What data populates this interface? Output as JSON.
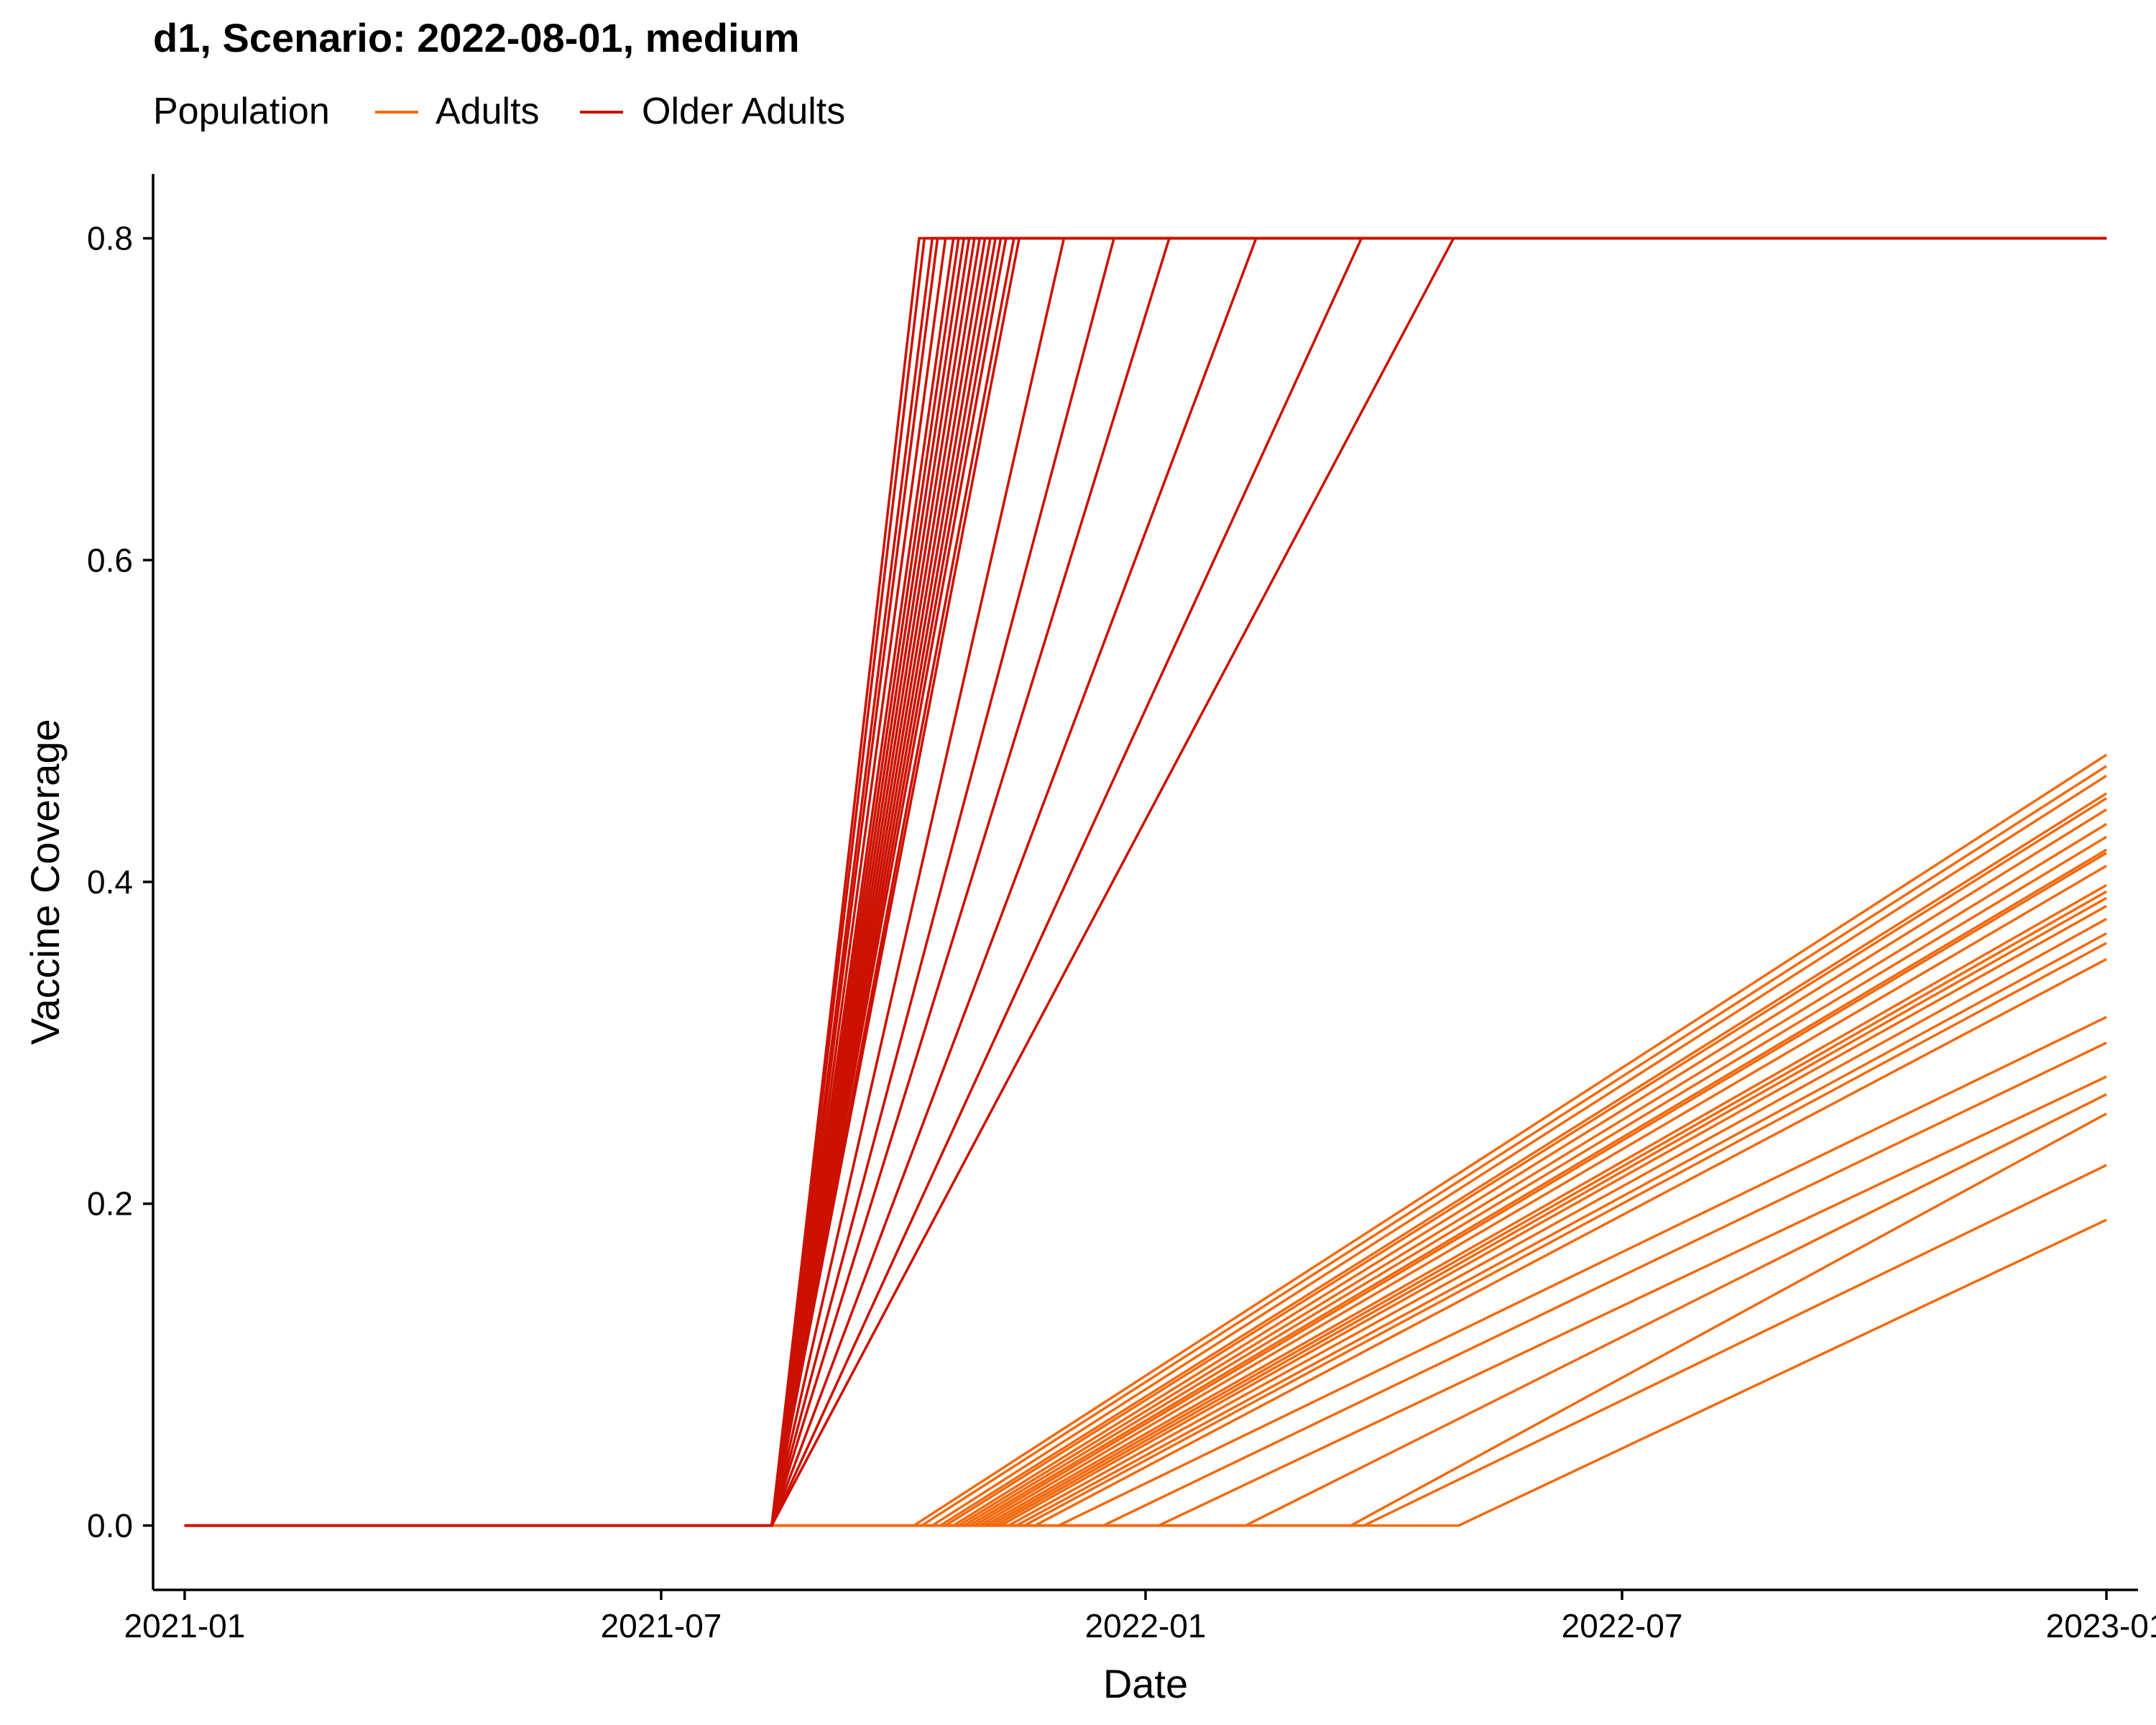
{
  "chart_data": {
    "type": "line",
    "title": "d1, Scenario: 2022-08-01, medium",
    "legend": {
      "title": "Population",
      "placement": "top-left",
      "entries": [
        {
          "name": "Adults",
          "color": "#f26a0f"
        },
        {
          "name": "Older Adults",
          "color": "#cc1100"
        }
      ]
    },
    "xlabel": "Date",
    "ylabel": "Vaccine Coverage",
    "x_type": "date",
    "xlim": [
      "2020-12-20",
      "2023-01-13"
    ],
    "ylim": [
      -0.04,
      0.84
    ],
    "x_ticks": [
      "2021-01",
      "2021-07",
      "2022-01",
      "2022-07",
      "2023-01"
    ],
    "y_ticks": [
      "0.0",
      "0.2",
      "0.4",
      "0.6",
      "0.8"
    ],
    "grid": false,
    "run_start": "2021-01-01",
    "run_end": "2023-01-01",
    "older_rollout_start": "2021-08-12",
    "series": [
      {
        "name": "Older Adults",
        "color": "#cc1100",
        "runs": [
          {
            "reach_cap": "2021-10-07",
            "cap": 0.8
          },
          {
            "reach_cap": "2021-10-09",
            "cap": 0.8
          },
          {
            "reach_cap": "2021-10-12",
            "cap": 0.8
          },
          {
            "reach_cap": "2021-10-14",
            "cap": 0.8
          },
          {
            "reach_cap": "2021-10-17",
            "cap": 0.8
          },
          {
            "reach_cap": "2021-10-20",
            "cap": 0.8
          },
          {
            "reach_cap": "2021-10-22",
            "cap": 0.8
          },
          {
            "reach_cap": "2021-10-24",
            "cap": 0.8
          },
          {
            "reach_cap": "2021-10-26",
            "cap": 0.8
          },
          {
            "reach_cap": "2021-10-28",
            "cap": 0.8
          },
          {
            "reach_cap": "2021-10-30",
            "cap": 0.8
          },
          {
            "reach_cap": "2021-11-01",
            "cap": 0.8
          },
          {
            "reach_cap": "2021-11-03",
            "cap": 0.8
          },
          {
            "reach_cap": "2021-11-05",
            "cap": 0.8
          },
          {
            "reach_cap": "2021-11-07",
            "cap": 0.8
          },
          {
            "reach_cap": "2021-11-09",
            "cap": 0.8
          },
          {
            "reach_cap": "2021-11-12",
            "cap": 0.8
          },
          {
            "reach_cap": "2021-11-14",
            "cap": 0.8
          },
          {
            "reach_cap": "2021-12-01",
            "cap": 0.8
          },
          {
            "reach_cap": "2021-12-20",
            "cap": 0.8
          },
          {
            "reach_cap": "2022-01-10",
            "cap": 0.8
          },
          {
            "reach_cap": "2022-02-12",
            "cap": 0.8
          },
          {
            "reach_cap": "2022-03-24",
            "cap": 0.8
          },
          {
            "reach_cap": "2022-04-28",
            "cap": 0.8
          }
        ]
      },
      {
        "name": "Adults",
        "color": "#f26a0f",
        "runs": [
          {
            "start": "2021-10-05",
            "end_value": 0.479
          },
          {
            "start": "2021-10-08",
            "end_value": 0.472
          },
          {
            "start": "2021-10-12",
            "end_value": 0.466
          },
          {
            "start": "2021-10-15",
            "end_value": 0.455
          },
          {
            "start": "2021-10-17",
            "end_value": 0.452
          },
          {
            "start": "2021-10-20",
            "end_value": 0.445
          },
          {
            "start": "2021-10-22",
            "end_value": 0.436
          },
          {
            "start": "2021-10-24",
            "end_value": 0.428
          },
          {
            "start": "2021-10-26",
            "end_value": 0.42
          },
          {
            "start": "2021-10-28",
            "end_value": 0.418
          },
          {
            "start": "2021-10-30",
            "end_value": 0.41
          },
          {
            "start": "2021-11-01",
            "end_value": 0.398
          },
          {
            "start": "2021-11-03",
            "end_value": 0.394
          },
          {
            "start": "2021-11-05",
            "end_value": 0.39
          },
          {
            "start": "2021-11-07",
            "end_value": 0.385
          },
          {
            "start": "2021-11-10",
            "end_value": 0.377
          },
          {
            "start": "2021-11-13",
            "end_value": 0.368
          },
          {
            "start": "2021-11-16",
            "end_value": 0.362
          },
          {
            "start": "2021-11-20",
            "end_value": 0.352
          },
          {
            "start": "2021-11-29",
            "end_value": 0.316
          },
          {
            "start": "2021-12-16",
            "end_value": 0.3
          },
          {
            "start": "2022-01-06",
            "end_value": 0.279
          },
          {
            "start": "2022-02-08",
            "end_value": 0.268
          },
          {
            "start": "2022-03-20",
            "end_value": 0.256
          },
          {
            "start": "2022-03-25",
            "end_value": 0.224
          },
          {
            "start": "2022-04-30",
            "end_value": 0.19
          }
        ]
      }
    ]
  }
}
